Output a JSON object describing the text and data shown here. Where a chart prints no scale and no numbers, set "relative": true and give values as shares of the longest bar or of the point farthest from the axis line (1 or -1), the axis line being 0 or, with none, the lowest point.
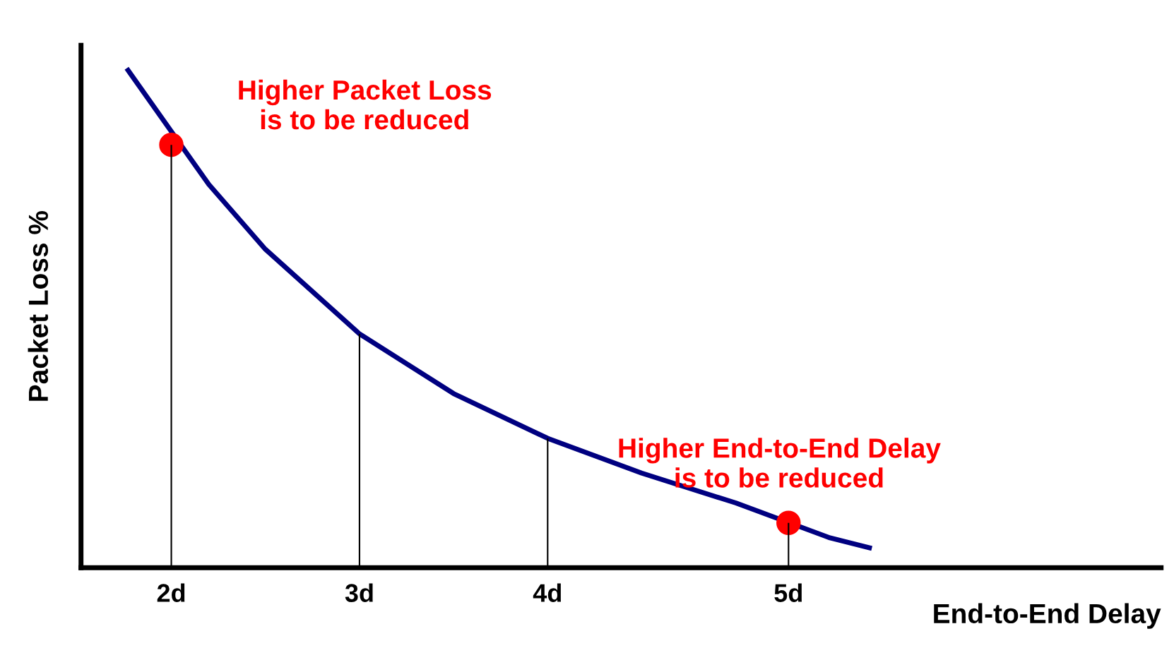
{
  "chart_data": {
    "type": "line",
    "relative": true,
    "xlabel": "End-to-End Delay",
    "ylabel": "Packet Loss %",
    "xlim": [
      1.52,
      7.26
    ],
    "xticks": [
      {
        "value": 2,
        "label": "2d"
      },
      {
        "value": 3,
        "label": "3d"
      },
      {
        "value": 4,
        "label": "4d"
      },
      {
        "value": 5.28,
        "label": "5d"
      }
    ],
    "series": [
      {
        "color": "#000080",
        "x": [
          1.77,
          2.2,
          2.5,
          3,
          3.5,
          4,
          4.5,
          5,
          5.5,
          5.71
        ],
        "values": [
          1.0,
          0.77,
          0.64,
          0.47,
          0.35,
          0.26,
          0.19,
          0.13,
          0.06,
          0.04
        ]
      },
      {
        "type": "bar",
        "color": "#000000",
        "x": [
          2,
          3,
          4,
          5.28
        ],
        "values": [
          0.85,
          0.47,
          0.26,
          0.09
        ]
      },
      {
        "type": "scatter",
        "marker": "circle",
        "color": "#ff0000",
        "x": [
          2,
          5.28
        ],
        "values": [
          0.85,
          0.09
        ]
      }
    ],
    "annotations": [
      {
        "text": "Higher Packet Loss\nis to be reduced",
        "x": 2,
        "y": 0.85
      },
      {
        "text": "Higher End-to-End Delay\nis to be reduced",
        "x": 5.28,
        "y": 0.09
      }
    ],
    "grid": false,
    "legend": false,
    "marker": "none"
  }
}
